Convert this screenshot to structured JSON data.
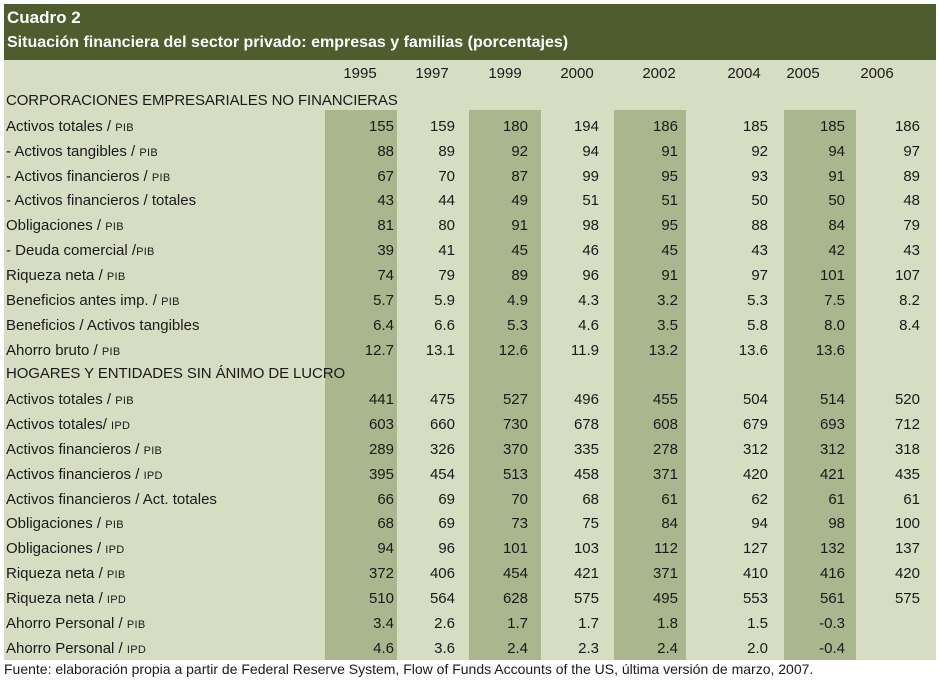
{
  "title": "Cuadro 2",
  "subtitle": "Situación financiera del sector privado: empresas y familias (porcentajes)",
  "years": [
    "1995",
    "1997",
    "1999",
    "2000",
    "2002",
    "2004",
    "2005",
    "2006"
  ],
  "sections": [
    {
      "heading": "CORPORACIONES EMPRESARIALES NO FINANCIERAS",
      "rows": [
        {
          "label": "Activos totales / ",
          "unit": "PIB",
          "values": [
            "155",
            "159",
            "180",
            "194",
            "186",
            "185",
            "185",
            "186"
          ]
        },
        {
          "label": " - Activos tangibles / ",
          "unit": "PIB",
          "values": [
            "88",
            "89",
            "92",
            "94",
            "91",
            "92",
            "94",
            "97"
          ]
        },
        {
          "label": " - Activos financieros / ",
          "unit": "PIB",
          "values": [
            "67",
            "70",
            "87",
            "99",
            "95",
            "93",
            "91",
            "89"
          ]
        },
        {
          "label": " - Activos financieros / totales",
          "unit": "",
          "values": [
            "43",
            "44",
            "49",
            "51",
            "51",
            "50",
            "50",
            "48"
          ]
        },
        {
          "label": "Obligaciones / ",
          "unit": "PIB",
          "values": [
            "81",
            "80",
            "91",
            "98",
            "95",
            "88",
            "84",
            "79"
          ]
        },
        {
          "label": " - Deuda comercial /",
          "unit": "PIB",
          "values": [
            "39",
            "41",
            "45",
            "46",
            "45",
            "43",
            "42",
            "43"
          ]
        },
        {
          "label": "Riqueza neta / ",
          "unit": "PIB",
          "values": [
            "74",
            "79",
            "89",
            "96",
            "91",
            "97",
            "101",
            "107"
          ]
        },
        {
          "label": "Beneficios antes imp. / ",
          "unit": "PIB",
          "values": [
            "5.7",
            "5.9",
            "4.9",
            "4.3",
            "3.2",
            "5.3",
            "7.5",
            "8.2"
          ]
        },
        {
          "label": "Beneficios / Activos tangibles",
          "unit": "",
          "values": [
            "6.4",
            "6.6",
            "5.3",
            "4.6",
            "3.5",
            "5.8",
            "8.0",
            "8.4"
          ]
        },
        {
          "label": "Ahorro bruto / ",
          "unit": "PIB",
          "values": [
            "12.7",
            "13.1",
            "12.6",
            "11.9",
            "13.2",
            "13.6",
            "13.6",
            ""
          ]
        }
      ]
    },
    {
      "heading": "HOGARES Y ENTIDADES SIN ÁNIMO DE LUCRO",
      "rows": [
        {
          "label": "Activos totales / ",
          "unit": "PIB",
          "values": [
            "441",
            "475",
            "527",
            "496",
            "455",
            "504",
            "514",
            "520"
          ]
        },
        {
          "label": "Activos totales/ ",
          "unit": "IPD",
          "values": [
            "603",
            "660",
            "730",
            "678",
            "608",
            "679",
            "693",
            "712"
          ]
        },
        {
          "label": "Activos financieros / ",
          "unit": "PIB",
          "values": [
            "289",
            "326",
            "370",
            "335",
            "278",
            "312",
            "312",
            "318"
          ]
        },
        {
          "label": "Activos financieros / ",
          "unit": "IPD",
          "values": [
            "395",
            "454",
            "513",
            "458",
            "371",
            "420",
            "421",
            "435"
          ]
        },
        {
          "label": "Activos financieros / Act. totales",
          "unit": "",
          "values": [
            "66",
            "69",
            "70",
            "68",
            "61",
            "62",
            "61",
            "61"
          ]
        },
        {
          "label": "Obligaciones / ",
          "unit": "PIB",
          "values": [
            "68",
            "69",
            "73",
            "75",
            "84",
            "94",
            "98",
            "100"
          ]
        },
        {
          "label": "Obligaciones / ",
          "unit": "IPD",
          "values": [
            "94",
            "96",
            "101",
            "103",
            "112",
            "127",
            "132",
            "137"
          ]
        },
        {
          "label": "Riqueza neta / ",
          "unit": "PIB",
          "values": [
            "372",
            "406",
            "454",
            "421",
            "371",
            "410",
            "416",
            "420"
          ]
        },
        {
          "label": "Riqueza neta / ",
          "unit": "IPD",
          "values": [
            "510",
            "564",
            "628",
            "575",
            "495",
            "553",
            "561",
            "575"
          ]
        },
        {
          "label": "Ahorro Personal / ",
          "unit": "PIB",
          "values": [
            "3.4",
            "2.6",
            "1.7",
            "1.7",
            "1.8",
            "1.5",
            "-0.3",
            ""
          ]
        },
        {
          "label": "Ahorro Personal / ",
          "unit": "IPD",
          "values": [
            "4.6",
            "3.6",
            "2.4",
            "2.3",
            "2.4",
            "2.0",
            "-0.4",
            ""
          ]
        }
      ]
    }
  ],
  "source": "Fuente: elaboración propia a partir de Federal Reserve System, Flow of Funds Accounts of the US, última versión de marzo, 2007.",
  "colors": {
    "header_bg": "#4e5c2e",
    "table_bg": "#d6ddc3",
    "highlight_col": "#aab68d"
  }
}
